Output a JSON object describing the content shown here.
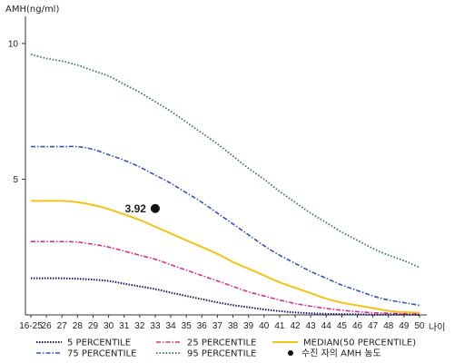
{
  "chart_data": {
    "type": "line",
    "ylabel": "AMH(ng/ml)",
    "xlabel": "나이",
    "ylim": [
      0,
      11
    ],
    "yticks": [
      5,
      10
    ],
    "categories": [
      "16-25",
      "26",
      "27",
      "28",
      "29",
      "30",
      "31",
      "32",
      "33",
      "34",
      "35",
      "36",
      "37",
      "38",
      "39",
      "40",
      "41",
      "42",
      "43",
      "44",
      "45",
      "46",
      "47",
      "48",
      "49",
      "50"
    ],
    "series": [
      {
        "key": "p95",
        "name": "95 PERCENTILE",
        "color": "#2e7d4a",
        "dash": "1.5,2",
        "width": 1.8,
        "values": [
          9.6,
          9.45,
          9.35,
          9.2,
          9.0,
          8.8,
          8.5,
          8.2,
          7.85,
          7.5,
          7.1,
          6.7,
          6.3,
          5.85,
          5.4,
          5.0,
          4.55,
          4.15,
          3.75,
          3.4,
          3.05,
          2.75,
          2.45,
          2.2,
          2.0,
          1.75
        ]
      },
      {
        "key": "p75",
        "name": "75 PERCENTILE",
        "color": "#3355bb",
        "dash": "5,2,1.5,2",
        "width": 1.6,
        "values": [
          6.2,
          6.2,
          6.2,
          6.2,
          6.1,
          5.9,
          5.7,
          5.45,
          5.15,
          4.85,
          4.5,
          4.15,
          3.75,
          3.35,
          2.95,
          2.55,
          2.2,
          1.9,
          1.6,
          1.35,
          1.1,
          0.9,
          0.7,
          0.55,
          0.45,
          0.35
        ]
      },
      {
        "key": "p50",
        "name": "MEDIAN(50 PERCENTILE)",
        "color": "#f0c419",
        "dash": "",
        "width": 2,
        "values": [
          4.2,
          4.2,
          4.2,
          4.15,
          4.05,
          3.9,
          3.7,
          3.5,
          3.25,
          3.0,
          2.75,
          2.5,
          2.25,
          1.95,
          1.7,
          1.45,
          1.2,
          1.0,
          0.8,
          0.6,
          0.45,
          0.35,
          0.25,
          0.15,
          0.1,
          0.08
        ]
      },
      {
        "key": "p25",
        "name": "25 PERCENTILE",
        "color": "#d6308a",
        "dash": "5,2,1.5,2",
        "width": 1.6,
        "values": [
          2.7,
          2.7,
          2.7,
          2.68,
          2.6,
          2.5,
          2.35,
          2.2,
          2.05,
          1.85,
          1.65,
          1.45,
          1.25,
          1.05,
          0.85,
          0.7,
          0.55,
          0.42,
          0.32,
          0.24,
          0.17,
          0.12,
          0.08,
          0.06,
          0.04,
          0.03
        ]
      },
      {
        "key": "p5",
        "name": "5 PERCENTILE",
        "color": "#1a1a66",
        "dash": "1.5,1.5",
        "width": 2,
        "values": [
          1.35,
          1.35,
          1.35,
          1.33,
          1.3,
          1.25,
          1.15,
          1.05,
          0.95,
          0.82,
          0.7,
          0.58,
          0.46,
          0.36,
          0.28,
          0.2,
          0.14,
          0.09,
          0.06,
          0.04,
          0.03,
          0.02,
          0.01,
          0.01,
          0.01,
          0.0
        ]
      }
    ],
    "marker": {
      "name": "수진 자의 AMH 농도",
      "x": "33",
      "y": 3.92,
      "label": "3.92",
      "color": "#111111"
    },
    "legend": {
      "placement": "bottom",
      "items": [
        {
          "key": "p5",
          "label": "5 PERCENTILE"
        },
        {
          "key": "p25",
          "label": "25 PERCENTILE"
        },
        {
          "key": "p50",
          "label": "MEDIAN(50 PERCENTILE)"
        },
        {
          "key": "p75",
          "label": "75 PERCENTILE"
        },
        {
          "key": "p95",
          "label": "95 PERCENTILE"
        },
        {
          "key": "marker",
          "label": "수진 자의 AMH 농도"
        }
      ]
    }
  }
}
